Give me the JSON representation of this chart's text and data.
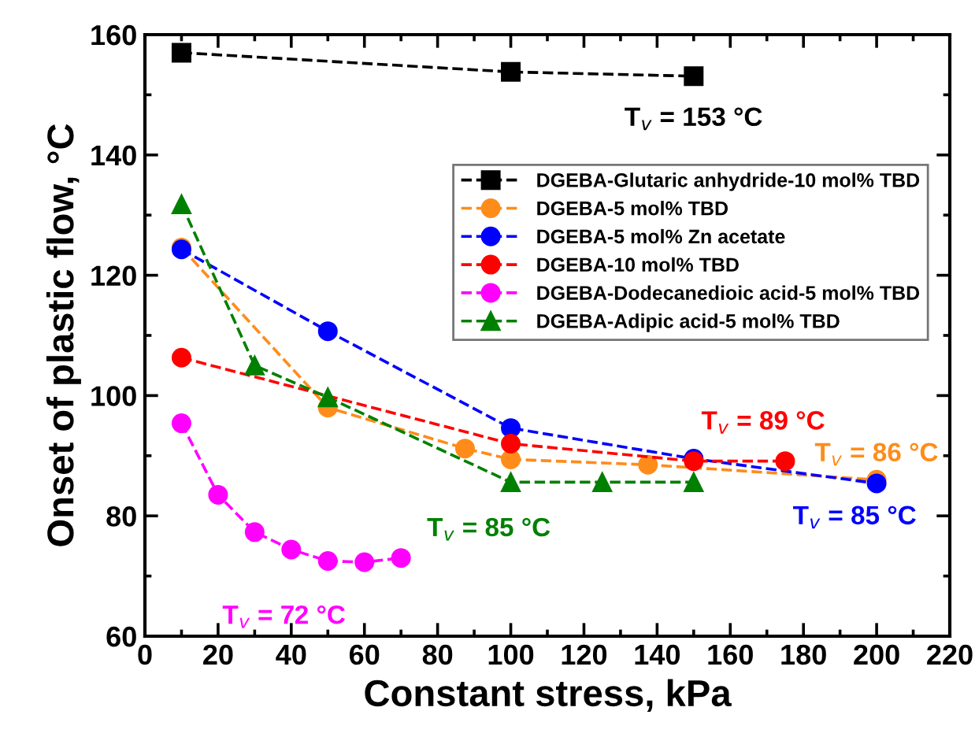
{
  "chart_data": {
    "type": "line",
    "xlabel": "Constant stress, kPa",
    "ylabel": "Onset of plastic flow, °C",
    "xlim": [
      0,
      220
    ],
    "xticks": [
      0,
      20,
      40,
      60,
      80,
      100,
      120,
      140,
      160,
      180,
      200,
      220
    ],
    "ylim": [
      60,
      160
    ],
    "yticks": [
      60,
      80,
      100,
      120,
      140,
      160
    ],
    "grid": false,
    "legend": "top right",
    "line_style": "dashed",
    "series": [
      {
        "name": "DGEBA-Glutaric anhydride-10 mol% TBD",
        "color": "#000000",
        "marker": "square",
        "x": [
          10,
          100,
          150
        ],
        "values": [
          157,
          153.8,
          153.1
        ]
      },
      {
        "name": "DGEBA-5 mol% TBD",
        "color": "#ff8c1a",
        "marker": "circle",
        "x": [
          10,
          50,
          87.5,
          100,
          137.5,
          200
        ],
        "values": [
          124.6,
          98,
          91.2,
          89.4,
          88.5,
          86.0
        ]
      },
      {
        "name": "DGEBA-5 mol% Zn acetate",
        "color": "#0000ff",
        "marker": "circle",
        "x": [
          10,
          50,
          100,
          150,
          200
        ],
        "values": [
          124.3,
          110.7,
          94.6,
          89.5,
          85.4
        ]
      },
      {
        "name": "DGEBA-10 mol% TBD",
        "color": "#ff0000",
        "marker": "circle",
        "x": [
          10,
          100,
          150,
          175
        ],
        "values": [
          106.3,
          92,
          89.1,
          89.1
        ]
      },
      {
        "name": "DGEBA-Dodecanedioic acid-5 mol% TBD",
        "color": "#ff00ff",
        "marker": "circle",
        "x": [
          10,
          20,
          30,
          40,
          50,
          60,
          70
        ],
        "values": [
          95.4,
          83.5,
          77.3,
          74.4,
          72.5,
          72.3,
          73.0
        ]
      },
      {
        "name": "DGEBA-Adipic acid-5 mol% TBD",
        "color": "#008000",
        "marker": "triangle",
        "x": [
          10,
          30,
          50,
          100,
          125,
          150
        ],
        "values": [
          131.8,
          105,
          99.7,
          85.6,
          85.6,
          85.6
        ]
      }
    ],
    "annotations": [
      {
        "text": "T$_{v}$ = 153 °C",
        "x": 150,
        "y": 153.1
      },
      {
        "text": "T$_{v}$ = 86 °C",
        "x": 200,
        "y": 86.0
      },
      {
        "text": "T$_{v}$ = 85 °C",
        "x": 200,
        "y": 85.4
      },
      {
        "text": "T$_{v}$ = 89 °C",
        "x": 175,
        "y": 89.1
      },
      {
        "text": "T$_{v}$ = 72 °C",
        "x": 50,
        "y": 72.5
      },
      {
        "text": "T$_{v}$ = 85 °C",
        "x": 100,
        "y": 85.6
      }
    ]
  }
}
